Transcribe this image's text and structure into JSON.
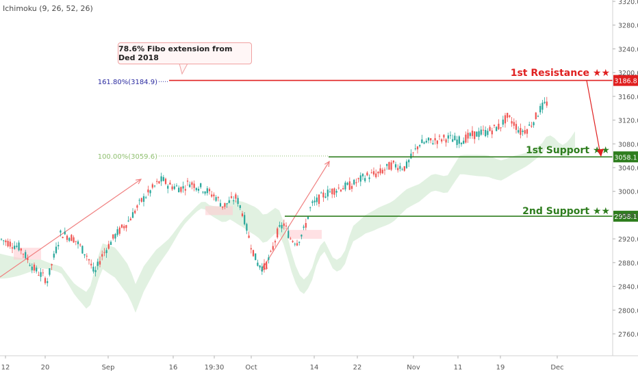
{
  "indicator": {
    "label": "Ichimoku (9, 26, 52, 26)"
  },
  "callout": {
    "text": "78.6% Fibo extension from Ded 2018"
  },
  "fibo": {
    "ext_label": "161.80%(3184.9)",
    "base_label": "100.00%(3059.6)"
  },
  "levels": {
    "resistance1": {
      "label": "1st Resistance ★★",
      "price_tag": "3186.8",
      "value": 3186.8
    },
    "support1": {
      "label": "1st Support ★★",
      "price_tag": "3058.1",
      "value": 3058.1
    },
    "support2": {
      "label": "2nd Support ★★",
      "price_tag": "2958.1",
      "value": 2958.1
    }
  },
  "colors": {
    "bull": "#26a69a",
    "bear": "#ef5350",
    "resistance": "#e02020",
    "support": "#2e7d1e",
    "cloud": "#c8e6c9",
    "cloud_red": "#ffcdd2",
    "fibo_ext": "#2a2aa0",
    "fibo_base": "#8fbf6f",
    "arrow": "#f08080"
  },
  "chart_data": {
    "type": "candlestick",
    "y_axis": {
      "ticks": [
        "3320.0",
        "3280.0",
        "3240.0",
        "3200.0",
        "3160.0",
        "3120.0",
        "3080.0",
        "3040.0",
        "3000.0",
        "2960.0",
        "2920.0",
        "2880.0",
        "2840.0",
        "2800.0",
        "2760.0"
      ],
      "range": [
        2720,
        3330
      ]
    },
    "x_axis": {
      "ticks": [
        "12",
        "20",
        "Sep",
        "16",
        "19:30",
        "Oct",
        "14",
        "22",
        "Nov",
        "11",
        "19",
        "Dec"
      ]
    },
    "price_path": [
      [
        0,
        2920
      ],
      [
        3,
        2905
      ],
      [
        5,
        2870
      ],
      [
        7,
        2850
      ],
      [
        8,
        2890
      ],
      [
        9,
        2930
      ],
      [
        11,
        2920
      ],
      [
        13,
        2890
      ],
      [
        14,
        2860
      ],
      [
        15,
        2890
      ],
      [
        17,
        2925
      ],
      [
        19,
        2950
      ],
      [
        21,
        2985
      ],
      [
        23,
        3010
      ],
      [
        24,
        3020
      ],
      [
        25,
        3010
      ],
      [
        27,
        3005
      ],
      [
        28,
        3015
      ],
      [
        30,
        3005
      ],
      [
        32,
        2990
      ],
      [
        33,
        2975
      ],
      [
        35,
        2990
      ],
      [
        36,
        2960
      ],
      [
        37,
        2915
      ],
      [
        38,
        2880
      ],
      [
        39,
        2870
      ],
      [
        40,
        2890
      ],
      [
        41,
        2930
      ],
      [
        42,
        2945
      ],
      [
        43,
        2920
      ],
      [
        44,
        2915
      ],
      [
        45,
        2935
      ],
      [
        46,
        2975
      ],
      [
        48,
        2995
      ],
      [
        50,
        3005
      ],
      [
        52,
        3010
      ],
      [
        54,
        3025
      ],
      [
        56,
        3030
      ],
      [
        58,
        3045
      ],
      [
        60,
        3040
      ],
      [
        61,
        3060
      ],
      [
        62,
        3080
      ],
      [
        64,
        3085
      ],
      [
        66,
        3090
      ],
      [
        68,
        3085
      ],
      [
        70,
        3095
      ],
      [
        72,
        3100
      ],
      [
        74,
        3110
      ],
      [
        75,
        3125
      ],
      [
        76,
        3115
      ],
      [
        77,
        3100
      ],
      [
        78,
        3105
      ],
      [
        79,
        3120
      ],
      [
        80,
        3140
      ],
      [
        81,
        3150
      ]
    ]
  }
}
